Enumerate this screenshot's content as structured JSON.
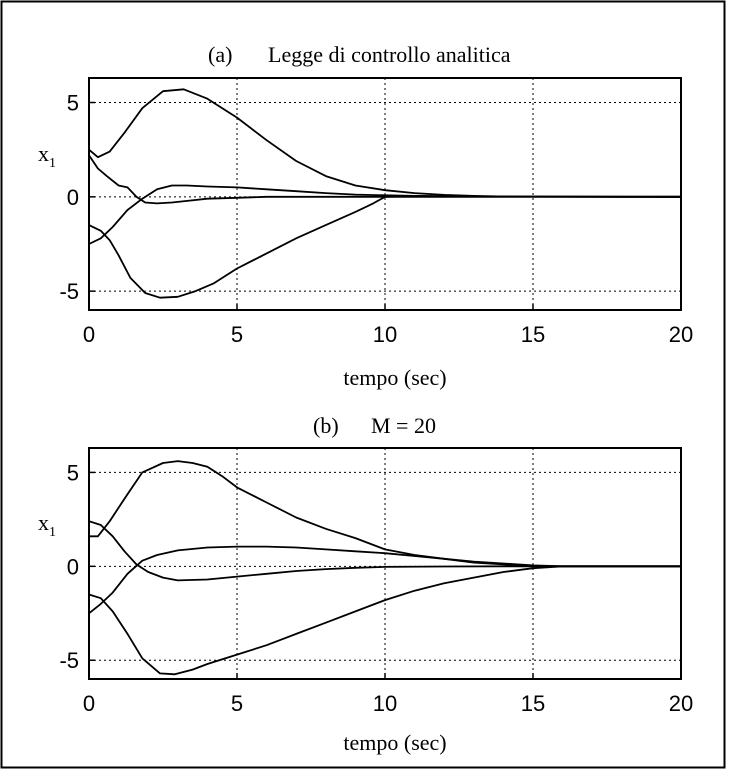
{
  "chart_data": [
    {
      "type": "line",
      "panel_label": "(a)",
      "title": "Legge di controllo analitica",
      "xlabel": "tempo (sec)",
      "ylabel": "x",
      "ylabel_subscript": "1",
      "xlim": [
        0,
        20
      ],
      "ylim": [
        -6,
        6.3
      ],
      "xticks": [
        0,
        5,
        10,
        15,
        20
      ],
      "yticks": [
        5,
        0,
        -5
      ],
      "grid": true,
      "series": [
        {
          "x": [
            0,
            0.3,
            0.7,
            1.2,
            1.8,
            2.5,
            3.2,
            4,
            5,
            6,
            7,
            8,
            9,
            10,
            11,
            12,
            13,
            14,
            16,
            18,
            20
          ],
          "values": [
            2.5,
            2.1,
            2.4,
            3.4,
            4.7,
            5.6,
            5.7,
            5.2,
            4.2,
            3.0,
            1.9,
            1.1,
            0.6,
            0.35,
            0.2,
            0.1,
            0.05,
            0.02,
            0.01,
            0.0,
            0.0
          ]
        },
        {
          "x": [
            0,
            0.3,
            0.6,
            1.0,
            1.3,
            1.6,
            1.9,
            2.3,
            2.8,
            3.4,
            4.0,
            5.0,
            6.0,
            7.0,
            8.0,
            9.0,
            10.0,
            11.0,
            12.0,
            14.0,
            16.0,
            20.0
          ],
          "values": [
            2.2,
            1.5,
            1.1,
            0.6,
            0.5,
            0.0,
            -0.3,
            -0.35,
            -0.3,
            -0.2,
            -0.1,
            -0.05,
            0.0,
            0.0,
            0.0,
            0.0,
            0.0,
            0.0,
            0.0,
            0.0,
            0.0,
            0.0
          ]
        },
        {
          "x": [
            0,
            0.4,
            0.8,
            1.3,
            1.8,
            2.3,
            2.8,
            3.3,
            4.0,
            5.0,
            6.0,
            7.0,
            8.0,
            9.0,
            10.0,
            11.0,
            12.0,
            13.0,
            15.0,
            20.0
          ],
          "values": [
            -2.5,
            -2.2,
            -1.6,
            -0.7,
            -0.1,
            0.4,
            0.6,
            0.6,
            0.55,
            0.5,
            0.4,
            0.3,
            0.2,
            0.12,
            0.08,
            0.05,
            0.03,
            0.02,
            0.01,
            0.0
          ]
        },
        {
          "x": [
            0,
            0.4,
            0.7,
            1.0,
            1.4,
            1.9,
            2.4,
            3.0,
            3.6,
            4.2,
            5.0,
            6.0,
            7.0,
            8.0,
            9.0,
            9.6,
            10.0,
            11.0,
            12.0,
            14.0,
            20.0
          ],
          "values": [
            -1.5,
            -1.8,
            -2.3,
            -3.1,
            -4.3,
            -5.1,
            -5.35,
            -5.3,
            -5.0,
            -4.6,
            -3.8,
            -3.0,
            -2.2,
            -1.5,
            -0.8,
            -0.35,
            0.0,
            0.05,
            0.03,
            0.01,
            0.0
          ]
        }
      ]
    },
    {
      "type": "line",
      "panel_label": "(b)",
      "title": "M = 20",
      "xlabel": "tempo (sec)",
      "ylabel": "x",
      "ylabel_subscript": "1",
      "xlim": [
        0,
        20
      ],
      "ylim": [
        -6,
        6.3
      ],
      "xticks": [
        0,
        5,
        10,
        15,
        20
      ],
      "yticks": [
        5,
        0,
        -5
      ],
      "grid": true,
      "series": [
        {
          "x": [
            0,
            0.3,
            0.7,
            1.2,
            1.8,
            2.5,
            3.0,
            3.5,
            4.0,
            4.5,
            5.0,
            6.0,
            7.0,
            8.0,
            9.0,
            10.0,
            11.0,
            12.0,
            13.0,
            14.0,
            15.0,
            16.0,
            20.0
          ],
          "values": [
            1.6,
            1.6,
            2.4,
            3.6,
            5.0,
            5.5,
            5.6,
            5.5,
            5.3,
            4.8,
            4.2,
            3.4,
            2.6,
            2.0,
            1.5,
            0.9,
            0.6,
            0.4,
            0.2,
            0.1,
            0.0,
            0.0,
            0.0
          ]
        },
        {
          "x": [
            0,
            0.4,
            0.8,
            1.2,
            1.6,
            2.0,
            2.5,
            3.0,
            4.0,
            5.0,
            6.0,
            7.0,
            8.0,
            9.0,
            10.0,
            12.0,
            14.0,
            16.0,
            20.0
          ],
          "values": [
            2.4,
            2.2,
            1.6,
            0.8,
            0.1,
            -0.3,
            -0.6,
            -0.75,
            -0.7,
            -0.55,
            -0.4,
            -0.25,
            -0.15,
            -0.08,
            -0.03,
            -0.01,
            0.0,
            0.0,
            0.0
          ]
        },
        {
          "x": [
            0,
            0.4,
            0.8,
            1.3,
            1.8,
            2.3,
            3.0,
            4.0,
            5.0,
            6.0,
            7.0,
            8.0,
            9.0,
            10.0,
            11.0,
            12.0,
            13.0,
            14.0,
            15.0,
            16.0,
            20.0
          ],
          "values": [
            -2.5,
            -2.0,
            -1.4,
            -0.4,
            0.3,
            0.6,
            0.85,
            1.0,
            1.05,
            1.05,
            1.0,
            0.9,
            0.8,
            0.7,
            0.55,
            0.4,
            0.25,
            0.15,
            0.05,
            0.0,
            0.0
          ]
        },
        {
          "x": [
            0,
            0.4,
            0.8,
            1.3,
            1.8,
            2.4,
            2.9,
            3.5,
            4.0,
            5.0,
            6.0,
            7.0,
            8.0,
            9.0,
            10.0,
            11.0,
            12.0,
            13.0,
            14.0,
            15.0,
            16.0,
            20.0
          ],
          "values": [
            -1.5,
            -1.7,
            -2.4,
            -3.6,
            -4.9,
            -5.7,
            -5.75,
            -5.5,
            -5.2,
            -4.7,
            -4.2,
            -3.6,
            -3.0,
            -2.4,
            -1.8,
            -1.3,
            -0.9,
            -0.6,
            -0.3,
            -0.1,
            0.0,
            0.0
          ]
        }
      ]
    }
  ]
}
